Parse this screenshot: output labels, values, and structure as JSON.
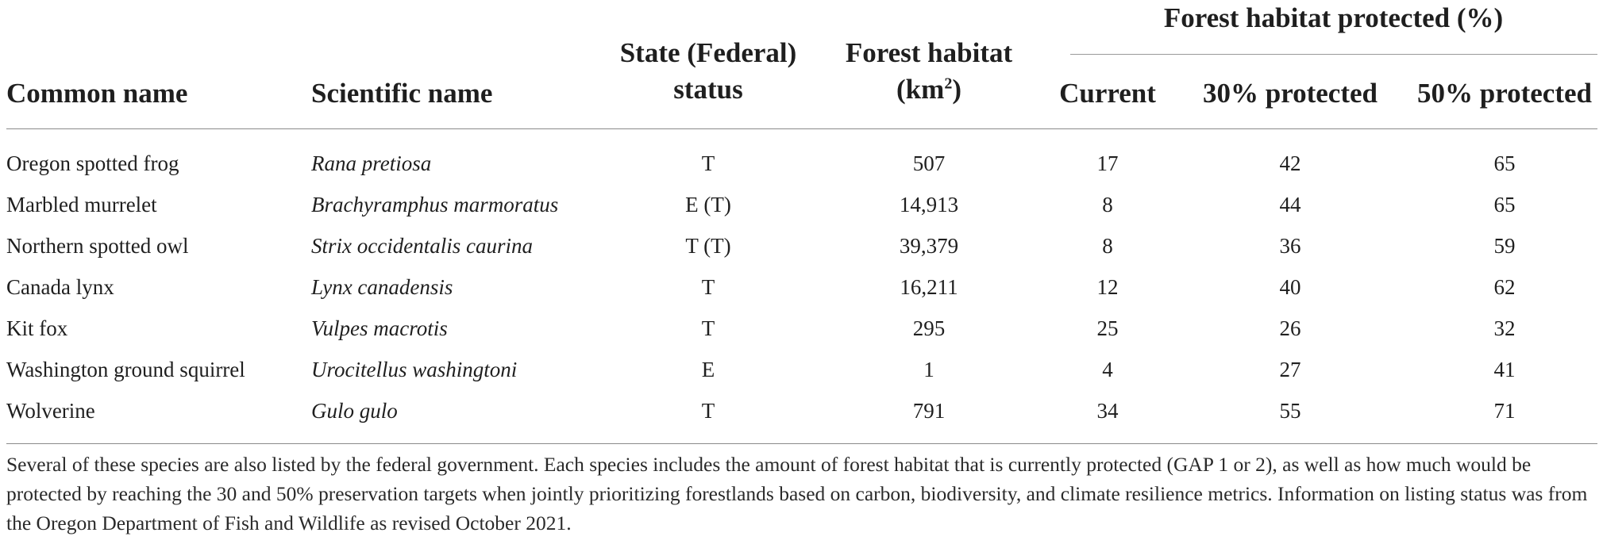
{
  "table": {
    "headers": {
      "common_name": "Common name",
      "scientific_name": "Scientific name",
      "status_line1": "State (Federal)",
      "status_line2": "status",
      "habitat_line1": "Forest habitat",
      "habitat_line2_pre": "(km",
      "habitat_sup": "2",
      "habitat_line2_post": ")",
      "group": "Forest habitat protected (%)",
      "current": "Current",
      "p30": "30% protected",
      "p50": "50% protected"
    },
    "rows": [
      {
        "common": "Oregon spotted frog",
        "scientific": "Rana pretiosa",
        "status": "T",
        "habitat": "507",
        "current": "17",
        "p30": "42",
        "p50": "65"
      },
      {
        "common": "Marbled murrelet",
        "scientific": "Brachyramphus marmoratus",
        "status": "E (T)",
        "habitat": "14,913",
        "current": "8",
        "p30": "44",
        "p50": "65"
      },
      {
        "common": "Northern spotted owl",
        "scientific": "Strix occidentalis caurina",
        "status": "T (T)",
        "habitat": "39,379",
        "current": "8",
        "p30": "36",
        "p50": "59"
      },
      {
        "common": "Canada lynx",
        "scientific": "Lynx canadensis",
        "status": "T",
        "habitat": "16,211",
        "current": "12",
        "p30": "40",
        "p50": "62"
      },
      {
        "common": "Kit fox",
        "scientific": "Vulpes macrotis",
        "status": "T",
        "habitat": "295",
        "current": "25",
        "p30": "26",
        "p50": "32"
      },
      {
        "common": "Washington ground squirrel",
        "scientific": "Urocitellus washingtoni",
        "status": "E",
        "habitat": "1",
        "current": "4",
        "p30": "27",
        "p50": "41"
      },
      {
        "common": "Wolverine",
        "scientific": "Gulo gulo",
        "status": "T",
        "habitat": "791",
        "current": "34",
        "p30": "55",
        "p50": "71"
      }
    ],
    "footnote": "Several of these species are also listed by the federal government. Each species includes the amount of forest habitat that is currently protected (GAP 1 or 2), as well as how much would be protected by reaching the 30 and 50% preservation targets when jointly prioritizing forestlands based on carbon, biodiversity, and climate resilience metrics. Information on listing status was from the Oregon Department of Fish and Wildlife as revised October 2021."
  }
}
